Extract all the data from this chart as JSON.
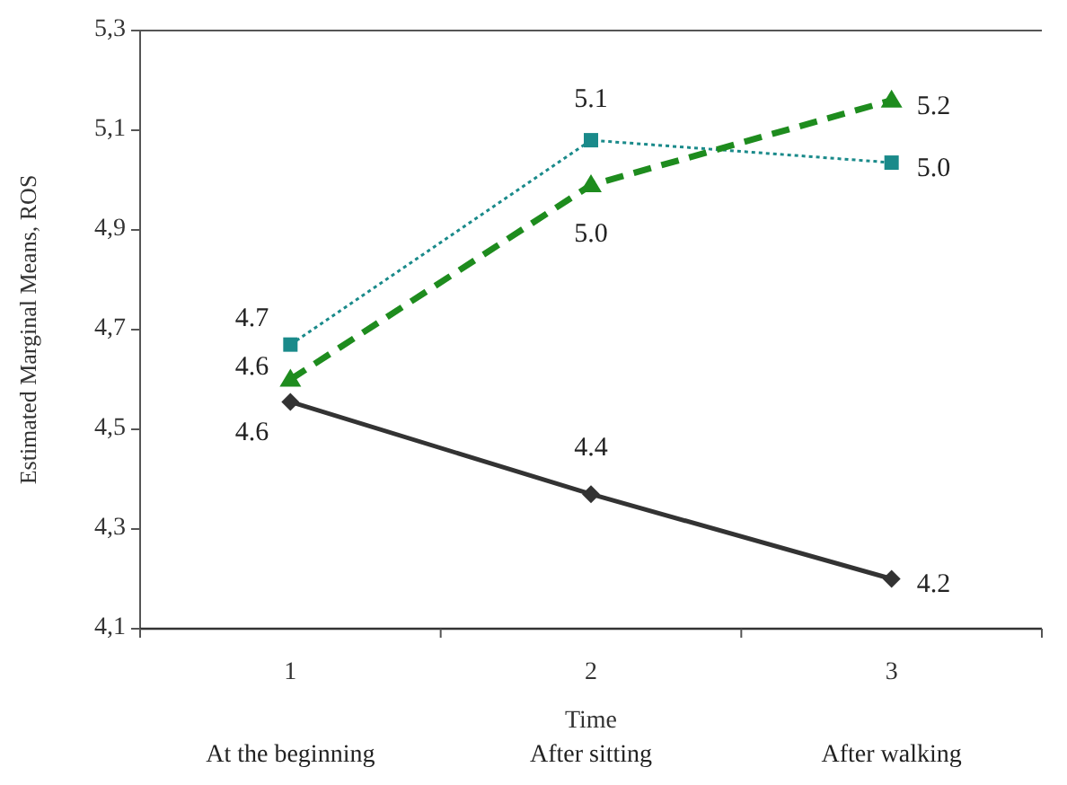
{
  "chart_data": {
    "type": "line",
    "xlabel": "Time",
    "ylabel": "Estimated Marginal Means, ROS",
    "categories": [
      "1",
      "2",
      "3"
    ],
    "series": [
      {
        "color": "#333333",
        "values": [
          4.555,
          4.37,
          4.2
        ],
        "marker": "diamond",
        "line_style": "solid",
        "value_labels": [
          "4.6",
          "4.4",
          "4.2"
        ]
      },
      {
        "color": "#1a8a8a",
        "values": [
          4.67,
          5.08,
          5.035
        ],
        "marker": "square",
        "line_style": "dotted",
        "value_labels": [
          "4.7",
          "5.1",
          "5.0"
        ]
      },
      {
        "color": "#1e8c1e",
        "values": [
          4.6,
          4.99,
          5.16
        ],
        "marker": "triangle",
        "line_style": "dashed",
        "value_labels": [
          "4.6",
          "5.0",
          "5.2"
        ]
      }
    ],
    "ylim": [
      4.1,
      5.3
    ],
    "yticks": [
      {
        "value": 4.1,
        "label": "4,1"
      },
      {
        "value": 4.3,
        "label": "4,3"
      },
      {
        "value": 4.5,
        "label": "4,5"
      },
      {
        "value": 4.7,
        "label": "4,7"
      },
      {
        "value": 4.9,
        "label": "4,9"
      },
      {
        "value": 5.1,
        "label": "5,1"
      },
      {
        "value": 5.3,
        "label": "5,3"
      }
    ],
    "annotations": [
      "At the beginning",
      "After sitting",
      "After walking"
    ],
    "grid": false
  }
}
